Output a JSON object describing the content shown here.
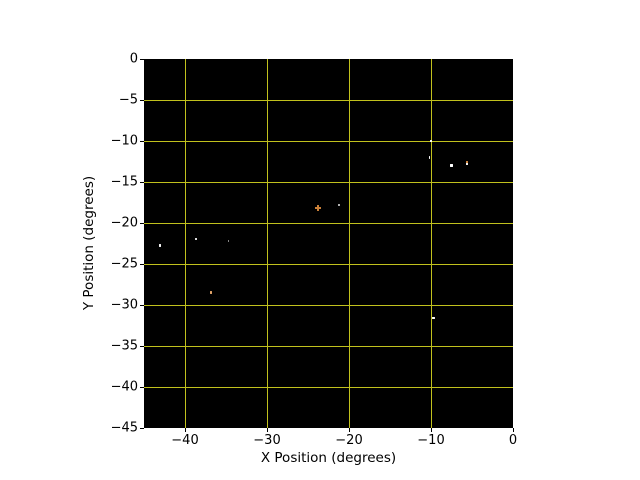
{
  "figure": {
    "background": "#ffffff",
    "text_color": "#000000"
  },
  "chart_data": {
    "type": "scatter",
    "title": "",
    "xlabel": "X Position (degrees)",
    "ylabel": "Y Position (degrees)",
    "xlim": [
      -45,
      0
    ],
    "ylim": [
      -45,
      0
    ],
    "grid": true,
    "grid_color": "#c1c11d",
    "plot_background": "#000000",
    "legend": null,
    "x_ticks": [
      {
        "value": -40,
        "label": "−40"
      },
      {
        "value": -30,
        "label": "−30"
      },
      {
        "value": -20,
        "label": "−20"
      },
      {
        "value": -10,
        "label": "−10"
      },
      {
        "value": 0,
        "label": "0"
      }
    ],
    "y_ticks": [
      {
        "value": 0,
        "label": "0"
      },
      {
        "value": -5,
        "label": "−5"
      },
      {
        "value": -10,
        "label": "−10"
      },
      {
        "value": -15,
        "label": "−15"
      },
      {
        "value": -20,
        "label": "−20"
      },
      {
        "value": -25,
        "label": "−25"
      },
      {
        "value": -30,
        "label": "−30"
      },
      {
        "value": -35,
        "label": "−35"
      },
      {
        "value": -40,
        "label": "−40"
      },
      {
        "value": -45,
        "label": "−45"
      }
    ],
    "points": [
      {
        "x": -43.0,
        "y": -22.8,
        "color": "#f5f5f5",
        "w": 2,
        "h": 3,
        "shape": "dot"
      },
      {
        "x": -38.6,
        "y": -21.9,
        "color": "#e8e8e8",
        "w": 2,
        "h": 2,
        "shape": "dot"
      },
      {
        "x": -34.7,
        "y": -22.2,
        "color": "#9a9a9a",
        "w": 1.5,
        "h": 1.5,
        "shape": "dot"
      },
      {
        "x": -36.8,
        "y": -28.5,
        "color": "#e2a368",
        "w": 2,
        "h": 3,
        "shape": "dot"
      },
      {
        "x": -23.8,
        "y": -18.2,
        "color": "#d98a3d",
        "w": 2,
        "h": 2,
        "shape": "plus"
      },
      {
        "x": -21.2,
        "y": -17.8,
        "color": "#bdbdbd",
        "w": 2,
        "h": 2,
        "shape": "dot"
      },
      {
        "x": -9.95,
        "y": -9.95,
        "color": "#ffffff",
        "w": 2,
        "h": 2,
        "shape": "dot"
      },
      {
        "x": -10.2,
        "y": -12.0,
        "color": "#ffffff",
        "w": 1.5,
        "h": 2.5,
        "shape": "dot"
      },
      {
        "x": -7.5,
        "y": -13.0,
        "color": "#ffffff",
        "w": 2.5,
        "h": 2.5,
        "shape": "dot"
      },
      {
        "x": -5.6,
        "y": -12.5,
        "color": "#d98a3d",
        "w": 2,
        "h": 2,
        "shape": "dot"
      },
      {
        "x": -5.65,
        "y": -12.8,
        "color": "#ffffff",
        "w": 2,
        "h": 2,
        "shape": "dot"
      },
      {
        "x": -9.7,
        "y": -31.6,
        "color": "#ffffff",
        "w": 2.5,
        "h": 2.5,
        "shape": "dot"
      }
    ]
  }
}
